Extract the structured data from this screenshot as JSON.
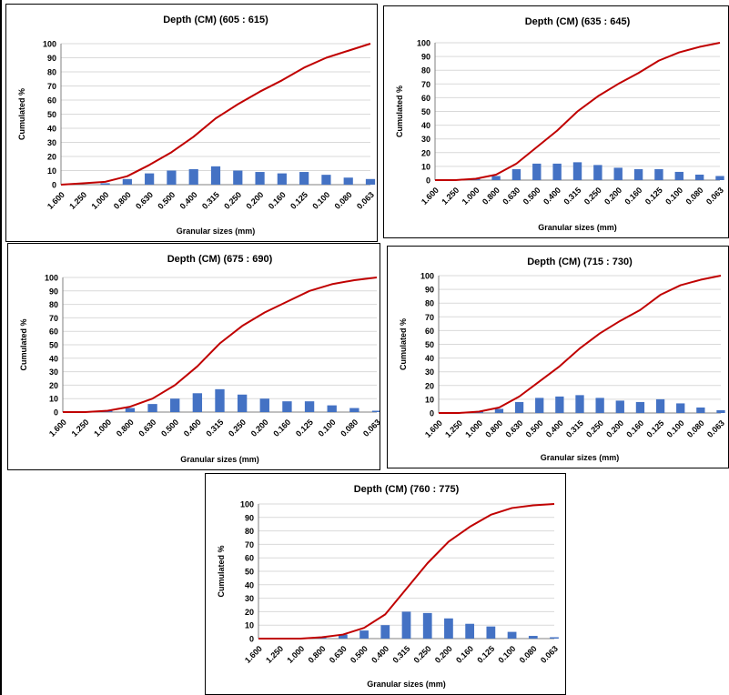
{
  "chart_data": [
    {
      "type": "bar+line",
      "title": "Depth (CM) (605 : 615)",
      "xlabel": "Granular sizes (mm)",
      "ylabel": "Cumulated %",
      "ylim": [
        0,
        100
      ],
      "yticks": [
        "0",
        "10",
        "20",
        "30",
        "40",
        "50",
        "60",
        "70",
        "80",
        "90",
        "100"
      ],
      "categories": [
        "1.600",
        "1.250",
        "1.000",
        "0.800",
        "0.630",
        "0.500",
        "0.400",
        "0.315",
        "0.250",
        "0.200",
        "0.160",
        "0.125",
        "0.100",
        "0.080",
        "0.063"
      ],
      "series": [
        {
          "type": "bar",
          "color": "#4472C4",
          "values": [
            0,
            0,
            1,
            4,
            8,
            10,
            11,
            13,
            10,
            9,
            8,
            9,
            7,
            5,
            4
          ]
        },
        {
          "type": "line",
          "color": "#C00000",
          "values": [
            0,
            1,
            2,
            6,
            14,
            23,
            34,
            47,
            57,
            66,
            74,
            83,
            90,
            95,
            100
          ]
        }
      ]
    },
    {
      "type": "bar+line",
      "title": "Depth (CM) (635 : 645)",
      "xlabel": "Granular sizes (mm)",
      "ylabel": "Cumulated %",
      "ylim": [
        0,
        100
      ],
      "yticks": [
        "0",
        "10",
        "20",
        "30",
        "40",
        "50",
        "60",
        "70",
        "80",
        "90",
        "100"
      ],
      "categories": [
        "1.600",
        "1.250",
        "1.000",
        "0.800",
        "0.630",
        "0.500",
        "0.400",
        "0.315",
        "0.250",
        "0.200",
        "0.160",
        "0.125",
        "0.100",
        "0.080",
        "0.063"
      ],
      "series": [
        {
          "type": "bar",
          "color": "#4472C4",
          "values": [
            0,
            0,
            1,
            3,
            8,
            12,
            12,
            13,
            11,
            9,
            8,
            8,
            6,
            4,
            3
          ]
        },
        {
          "type": "line",
          "color": "#C00000",
          "values": [
            0,
            0,
            1,
            4,
            12,
            24,
            36,
            50,
            61,
            70,
            78,
            87,
            93,
            97,
            100
          ]
        }
      ]
    },
    {
      "type": "bar+line",
      "title": "Depth (CM) (675 : 690)",
      "xlabel": "Granular sizes (mm)",
      "ylabel": "Cumulated %",
      "ylim": [
        0,
        100
      ],
      "yticks": [
        "0",
        "10",
        "20",
        "30",
        "40",
        "50",
        "60",
        "70",
        "80",
        "90",
        "100"
      ],
      "categories": [
        "1.600",
        "1.250",
        "1.000",
        "0.800",
        "0.630",
        "0.500",
        "0.400",
        "0.315",
        "0.250",
        "0.200",
        "0.160",
        "0.125",
        "0.100",
        "0.080",
        "0.063"
      ],
      "series": [
        {
          "type": "bar",
          "color": "#4472C4",
          "values": [
            0,
            0,
            1,
            3,
            6,
            10,
            14,
            17,
            13,
            10,
            8,
            8,
            5,
            3,
            1
          ]
        },
        {
          "type": "line",
          "color": "#C00000",
          "values": [
            0,
            0,
            1,
            4,
            10,
            20,
            34,
            51,
            64,
            74,
            82,
            90,
            95,
            98,
            100
          ]
        }
      ]
    },
    {
      "type": "bar+line",
      "title": "Depth (CM) (715 : 730)",
      "xlabel": "Granular sizes (mm)",
      "ylabel": "Cumulated %",
      "ylim": [
        0,
        100
      ],
      "yticks": [
        "0",
        "10",
        "20",
        "30",
        "40",
        "50",
        "60",
        "70",
        "80",
        "90",
        "100"
      ],
      "categories": [
        "1.600",
        "1.250",
        "1.000",
        "0.800",
        "0.630",
        "0.500",
        "0.400",
        "0.315",
        "0.250",
        "0.200",
        "0.160",
        "0.125",
        "0.100",
        "0.080",
        "0.063"
      ],
      "series": [
        {
          "type": "bar",
          "color": "#4472C4",
          "values": [
            0,
            0,
            1,
            3,
            8,
            11,
            12,
            13,
            11,
            9,
            8,
            10,
            7,
            4,
            2
          ]
        },
        {
          "type": "line",
          "color": "#C00000",
          "values": [
            0,
            0,
            1,
            4,
            12,
            23,
            34,
            47,
            58,
            67,
            75,
            86,
            93,
            97,
            100
          ]
        }
      ]
    },
    {
      "type": "bar+line",
      "title": "Depth (CM) (760 : 775)",
      "xlabel": "Granular sizes (mm)",
      "ylabel": "Cumulated %",
      "ylim": [
        0,
        100
      ],
      "yticks": [
        "0",
        "10",
        "20",
        "30",
        "40",
        "50",
        "60",
        "70",
        "80",
        "90",
        "100"
      ],
      "categories": [
        "1.600",
        "1.250",
        "1.000",
        "0.800",
        "0.630",
        "0.500",
        "0.400",
        "0.315",
        "0.250",
        "0.200",
        "0.160",
        "0.125",
        "0.100",
        "0.080",
        "0.063"
      ],
      "series": [
        {
          "type": "bar",
          "color": "#4472C4",
          "values": [
            0,
            0,
            0,
            1,
            3,
            6,
            10,
            20,
            19,
            15,
            11,
            9,
            5,
            2,
            1
          ]
        },
        {
          "type": "line",
          "color": "#C00000",
          "values": [
            0,
            0,
            0,
            1,
            3,
            8,
            18,
            37,
            56,
            72,
            83,
            92,
            97,
            99,
            100
          ]
        }
      ]
    }
  ]
}
